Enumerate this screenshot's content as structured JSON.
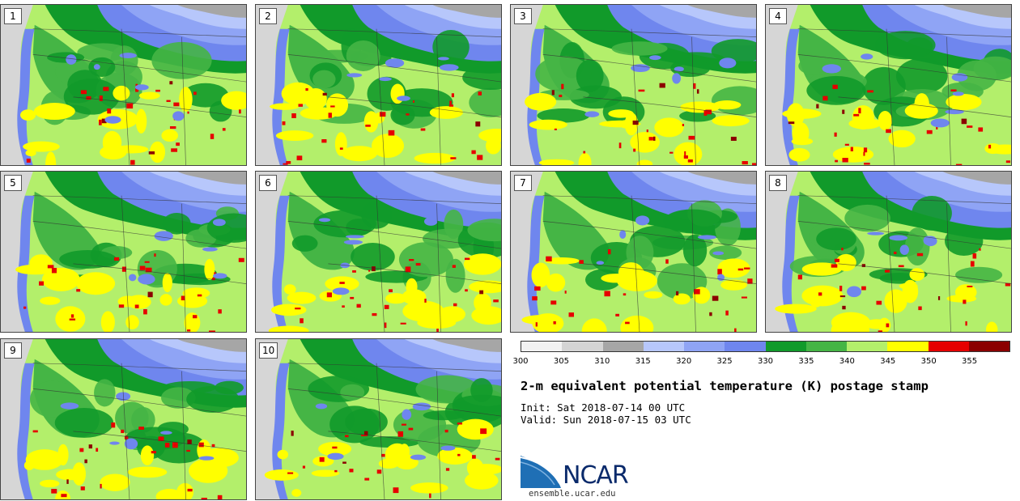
{
  "panels": [
    {
      "label": "1"
    },
    {
      "label": "2"
    },
    {
      "label": "3"
    },
    {
      "label": "4"
    },
    {
      "label": "5"
    },
    {
      "label": "6"
    },
    {
      "label": "7"
    },
    {
      "label": "8"
    },
    {
      "label": "9"
    },
    {
      "label": "10"
    }
  ],
  "colorbar": {
    "levels": [
      "300",
      "305",
      "310",
      "315",
      "320",
      "325",
      "330",
      "335",
      "340",
      "345",
      "350",
      "355"
    ],
    "colors": [
      "#f2f2f2",
      "#d4d4d4",
      "#a6a6a6",
      "#b7c7fb",
      "#8fa4f5",
      "#6f86ee",
      "#119a2a",
      "#45b545",
      "#b3ef6b",
      "#ffff00",
      "#e60000",
      "#8b0000"
    ]
  },
  "title": "2-m equivalent potential temperature (K) postage stamp",
  "init": "Init: Sat 2018-07-14 00 UTC",
  "valid": "Valid: Sun 2018-07-15 03 UTC",
  "logo": {
    "text": "NCAR",
    "url": "ensemble.ucar.edu"
  }
}
